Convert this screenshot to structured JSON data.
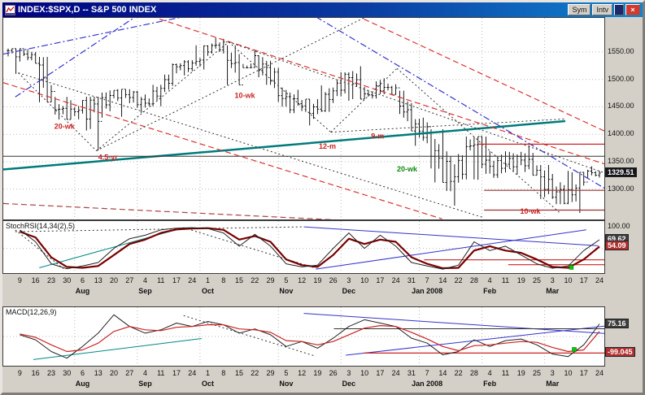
{
  "window": {
    "title": "INDEX:$SPX,D -- S&P 500 INDEX",
    "buttons": {
      "sym": "Sym",
      "intv": "Intv",
      "close_glyph": "×"
    }
  },
  "chart_data": [
    {
      "type": "ohlc-bar",
      "title": "INDEX:$SPX,D -- S&P 500 INDEX",
      "ylim": [
        1245,
        1612
      ],
      "y_gridlines": [
        1300,
        1350,
        1400,
        1450,
        1500,
        1550
      ],
      "y_axis": [
        {
          "label": "1550.00",
          "value": 1550
        },
        {
          "label": "1500.00",
          "value": 1500
        },
        {
          "label": "1450.00",
          "value": 1450
        },
        {
          "label": "1400.00",
          "value": 1400
        },
        {
          "label": "1350.00",
          "value": 1350
        },
        {
          "label": "1300.00",
          "value": 1300
        }
      ],
      "last": {
        "label": "1329.51",
        "value": 1329.51,
        "bg": "#16161a"
      },
      "x_tick_labels": [
        "9",
        "16",
        "23",
        "30",
        "6",
        "13",
        "20",
        "27",
        "4",
        "11",
        "17",
        "24",
        "1",
        "8",
        "15",
        "22",
        "29",
        "5",
        "12",
        "19",
        "26",
        "3",
        "10",
        "17",
        "24",
        "31",
        "7",
        "14",
        "22",
        "28",
        "4",
        "11",
        "19",
        "25",
        "3",
        "10",
        "17",
        "24"
      ],
      "month_labels": [
        {
          "label": "Aug",
          "index": 4
        },
        {
          "label": "Sep",
          "index": 8
        },
        {
          "label": "Oct",
          "index": 12
        },
        {
          "label": "Nov",
          "index": 17
        },
        {
          "label": "Dec",
          "index": 21
        },
        {
          "label": "Jan 2008",
          "index": 26
        },
        {
          "label": "Feb",
          "index": 30
        },
        {
          "label": "Mar",
          "index": 34
        }
      ],
      "close": [
        1552.5,
        1534.1,
        1458.9,
        1433.1,
        1453.6,
        1445.9,
        1479.4,
        1474.0,
        1453.6,
        1484.2,
        1525.8,
        1526.6,
        1557.6,
        1561.8,
        1500.6,
        1535.3,
        1509.7,
        1453.7,
        1458.7,
        1440.7,
        1481.1,
        1504.7,
        1467.9,
        1484.5,
        1478.5,
        1411.6,
        1401.0,
        1325.2,
        1330.6,
        1395.4,
        1331.3,
        1349.0,
        1353.1,
        1330.6,
        1293.4,
        1288.1,
        1329.5,
        1329.51
      ],
      "high": [
        1556.0,
        1555.1,
        1541.0,
        1468.0,
        1462.0,
        1468.4,
        1480.0,
        1482.0,
        1479.0,
        1490.0,
        1529.0,
        1535.0,
        1562.0,
        1576.1,
        1562.0,
        1553.0,
        1544.0,
        1521.0,
        1481.0,
        1464.0,
        1489.0,
        1513.0,
        1524.0,
        1499.0,
        1502.0,
        1479.4,
        1430.3,
        1409.3,
        1369.0,
        1396.0,
        1396.0,
        1369.2,
        1368.0,
        1380.3,
        1344.2,
        1333.4,
        1331.0,
        1342.0
      ],
      "low": [
        1510.0,
        1529.2,
        1458.4,
        1427.0,
        1427.2,
        1370.6,
        1430.4,
        1432.0,
        1439.0,
        1451.0,
        1477.0,
        1507.1,
        1518.1,
        1547.0,
        1490.0,
        1521.2,
        1490.0,
        1450.3,
        1438.5,
        1416.0,
        1441.0,
        1461.0,
        1464.0,
        1465.2,
        1472.0,
        1406.0,
        1379.0,
        1312.5,
        1270.1,
        1318.0,
        1317.0,
        1320.4,
        1327.0,
        1325.4,
        1282.4,
        1272.7,
        1256.9,
        1321.2
      ],
      "annotations": {
        "trendlines": [
          {
            "x1": 0.0,
            "y1": 1336,
            "x2": 0.935,
            "y2": 1424,
            "color": "#007a7a",
            "w": 2.5,
            "dash": ""
          },
          {
            "x1": 0.0,
            "y1": 1360,
            "x2": 1.0,
            "y2": 1360,
            "color": "#333333",
            "w": 1,
            "dash": ""
          },
          {
            "x1": 0.26,
            "y1": 1610,
            "x2": 1.0,
            "y2": 1346,
            "color": "#dd3333",
            "w": 1.2,
            "dash": "7,4"
          },
          {
            "x1": 0.0,
            "y1": 1494,
            "x2": 0.73,
            "y2": 1246,
            "color": "#dd3333",
            "w": 1.2,
            "dash": "7,4"
          },
          {
            "x1": 0.6,
            "y1": 1610,
            "x2": 1.0,
            "y2": 1406,
            "color": "#dd3333",
            "w": 1.2,
            "dash": "7,4"
          },
          {
            "x1": 0.0,
            "y1": 1274,
            "x2": 1.0,
            "y2": 1220,
            "color": "#aa4444",
            "w": 1.2,
            "dash": "7,4"
          },
          {
            "x1": 0.0,
            "y1": 1546,
            "x2": 0.3,
            "y2": 1614,
            "color": "#3333cc",
            "w": 1.2,
            "dash": "8,3,2,3"
          },
          {
            "x1": 0.02,
            "y1": 1468,
            "x2": 0.22,
            "y2": 1614,
            "color": "#3333cc",
            "w": 1.2,
            "dash": "8,3,2,3"
          },
          {
            "x1": 0.52,
            "y1": 1614,
            "x2": 1.0,
            "y2": 1302,
            "color": "#3333cc",
            "w": 1.2,
            "dash": "8,3,2,3"
          },
          {
            "x1": 0.025,
            "y1": 1512,
            "x2": 0.155,
            "y2": 1370,
            "color": "#333333",
            "w": 1,
            "dash": "2,3"
          },
          {
            "x1": 0.155,
            "y1": 1370,
            "x2": 0.375,
            "y2": 1568,
            "color": "#333333",
            "w": 1,
            "dash": "2,3"
          },
          {
            "x1": 0.375,
            "y1": 1568,
            "x2": 0.545,
            "y2": 1404,
            "color": "#333333",
            "w": 1,
            "dash": "2,3"
          },
          {
            "x1": 0.545,
            "y1": 1404,
            "x2": 0.655,
            "y2": 1520,
            "color": "#333333",
            "w": 1,
            "dash": "2,3"
          },
          {
            "x1": 0.655,
            "y1": 1520,
            "x2": 0.925,
            "y2": 1258,
            "color": "#333333",
            "w": 1,
            "dash": "2,3"
          },
          {
            "x1": 0.025,
            "y1": 1512,
            "x2": 0.8,
            "y2": 1248,
            "color": "#333333",
            "w": 1,
            "dash": "2,3"
          },
          {
            "x1": 0.155,
            "y1": 1370,
            "x2": 0.6,
            "y2": 1612,
            "color": "#333333",
            "w": 1,
            "dash": "2,3"
          },
          {
            "x1": 0.375,
            "y1": 1568,
            "x2": 1.0,
            "y2": 1330,
            "color": "#333333",
            "w": 1,
            "dash": "2,3"
          },
          {
            "x1": 0.545,
            "y1": 1404,
            "x2": 0.935,
            "y2": 1428,
            "color": "#333333",
            "w": 1,
            "dash": "2,3"
          },
          {
            "x1": 0.79,
            "y1": 1382,
            "x2": 1.0,
            "y2": 1382,
            "color": "#cc2222",
            "w": 1.2,
            "dash": ""
          },
          {
            "x1": 0.8,
            "y1": 1298,
            "x2": 1.0,
            "y2": 1298,
            "color": "#993333",
            "w": 1.2,
            "dash": ""
          },
          {
            "x1": 0.8,
            "y1": 1262,
            "x2": 1.0,
            "y2": 1262,
            "color": "#993333",
            "w": 1.2,
            "dash": ""
          }
        ],
        "labels": [
          {
            "text": "10-wk",
            "x": 0.385,
            "y": 1466,
            "color": "#cc2222"
          },
          {
            "text": "20-wk",
            "x": 0.085,
            "y": 1410,
            "color": "#cc2222"
          },
          {
            "text": "4.5-yr",
            "x": 0.158,
            "y": 1354,
            "color": "#cc2222"
          },
          {
            "text": "12-m",
            "x": 0.525,
            "y": 1374,
            "color": "#cc2222"
          },
          {
            "text": "9-m",
            "x": 0.612,
            "y": 1392,
            "color": "#cc2222"
          },
          {
            "text": "20-wk",
            "x": 0.655,
            "y": 1332,
            "color": "#118811"
          },
          {
            "text": "10-wk",
            "x": 0.86,
            "y": 1255,
            "color": "#cc2222"
          }
        ]
      }
    },
    {
      "type": "line",
      "title": "StochRSI(14,34(2),5)",
      "ylim": [
        -6,
        112
      ],
      "y_gridlines": [
        50
      ],
      "y_axis": [
        {
          "label": "100.00",
          "value": 100
        }
      ],
      "badges": [
        {
          "label": "69.62",
          "value": 69.62,
          "bg": "#3d3d3d"
        },
        {
          "label": "54.09",
          "value": 54.09,
          "bg": "#b03030"
        }
      ],
      "series": [
        {
          "name": "StochRSI",
          "color": "#7a0000",
          "width": 2.2,
          "values": [
            88,
            75,
            30,
            8,
            6,
            10,
            35,
            60,
            70,
            85,
            93,
            95,
            96,
            92,
            70,
            78,
            65,
            25,
            12,
            8,
            35,
            72,
            60,
            70,
            65,
            30,
            15,
            5,
            6,
            45,
            55,
            45,
            40,
            25,
            8,
            6,
            25,
            54.09
          ]
        },
        {
          "name": "signal",
          "color": "#222222",
          "width": 1,
          "values": [
            92,
            65,
            15,
            4,
            10,
            18,
            50,
            72,
            80,
            92,
            96,
            97,
            95,
            85,
            55,
            82,
            55,
            15,
            8,
            12,
            50,
            85,
            50,
            80,
            55,
            18,
            10,
            3,
            12,
            65,
            45,
            55,
            35,
            15,
            5,
            10,
            45,
            69.62
          ]
        }
      ],
      "annotations": {
        "trendlines": [
          {
            "x1": 0.5,
            "y1": 99,
            "x2": 0.99,
            "y2": 56,
            "color": "#3333cc",
            "w": 1,
            "dash": ""
          },
          {
            "x1": 0.52,
            "y1": 3,
            "x2": 0.97,
            "y2": 92,
            "color": "#3333cc",
            "w": 1,
            "dash": ""
          },
          {
            "x1": 0.06,
            "y1": 6,
            "x2": 0.3,
            "y2": 97,
            "color": "#008888",
            "w": 1,
            "dash": ""
          },
          {
            "x1": 0.3,
            "y1": 97,
            "x2": 0.52,
            "y2": 5,
            "color": "#333333",
            "w": 1,
            "dash": "2,3"
          },
          {
            "x1": 0.02,
            "y1": 92,
            "x2": 0.1,
            "y2": 4,
            "color": "#333333",
            "w": 1,
            "dash": "2,3"
          },
          {
            "x1": 0.02,
            "y1": 88,
            "x2": 0.5,
            "y2": 99,
            "color": "#333333",
            "w": 1,
            "dash": "2,3"
          },
          {
            "x1": 0.7,
            "y1": 24,
            "x2": 1.0,
            "y2": 24,
            "color": "#cc2222",
            "w": 1.2,
            "dash": ""
          },
          {
            "x1": 0.84,
            "y1": 13,
            "x2": 1.0,
            "y2": 13,
            "color": "#cc2222",
            "w": 1.2,
            "dash": ""
          }
        ],
        "marker": {
          "x": 0.945,
          "y": 7,
          "color": "#00cc00"
        }
      }
    },
    {
      "type": "line",
      "title": "MACD(12,26,9)",
      "ylim": [
        -175,
        175
      ],
      "y_gridlines": [
        0
      ],
      "y_axis": [],
      "badges": [
        {
          "label": "75.16",
          "value": 75.16,
          "bg": "#3d3d3d"
        },
        {
          "label": "-99.045",
          "value": -99.045,
          "bg": "#b03030"
        }
      ],
      "series": [
        {
          "name": "MACD",
          "color": "#222222",
          "width": 1,
          "values": [
            10,
            -20,
            -90,
            -130,
            -60,
            20,
            130,
            60,
            20,
            40,
            80,
            60,
            90,
            70,
            20,
            45,
            10,
            -60,
            -30,
            -70,
            -10,
            60,
            100,
            80,
            60,
            -10,
            -40,
            -110,
            -90,
            -20,
            -60,
            -25,
            -15,
            -50,
            -105,
            -120,
            -50,
            75.16
          ]
        },
        {
          "name": "signal",
          "color": "#cc2222",
          "width": 1.2,
          "values": [
            15,
            -5,
            -50,
            -90,
            -80,
            -40,
            30,
            60,
            40,
            35,
            55,
            60,
            70,
            70,
            45,
            40,
            25,
            -25,
            -30,
            -50,
            -30,
            10,
            50,
            65,
            60,
            25,
            -15,
            -60,
            -85,
            -55,
            -50,
            -40,
            -30,
            -35,
            -65,
            -90,
            -80,
            30
          ]
        }
      ],
      "annotations": {
        "trendlines": [
          {
            "x1": 0.5,
            "y1": 138,
            "x2": 1.0,
            "y2": 18,
            "color": "#3333cc",
            "w": 1,
            "dash": ""
          },
          {
            "x1": 0.57,
            "y1": -112,
            "x2": 1.0,
            "y2": 62,
            "color": "#3333cc",
            "w": 1,
            "dash": ""
          },
          {
            "x1": 0.05,
            "y1": -138,
            "x2": 0.33,
            "y2": -12,
            "color": "#008888",
            "w": 1,
            "dash": ""
          },
          {
            "x1": 0.55,
            "y1": 46,
            "x2": 1.0,
            "y2": 46,
            "color": "#333333",
            "w": 1,
            "dash": ""
          },
          {
            "x1": 0.6,
            "y1": -99.045,
            "x2": 1.0,
            "y2": -99.045,
            "color": "#cc2222",
            "w": 1.2,
            "dash": ""
          },
          {
            "x1": 0.3,
            "y1": 125,
            "x2": 0.52,
            "y2": -118,
            "color": "#333333",
            "w": 1,
            "dash": "2,3"
          }
        ],
        "marker": {
          "x": 0.95,
          "y": -78,
          "color": "#00cc00"
        }
      }
    }
  ]
}
